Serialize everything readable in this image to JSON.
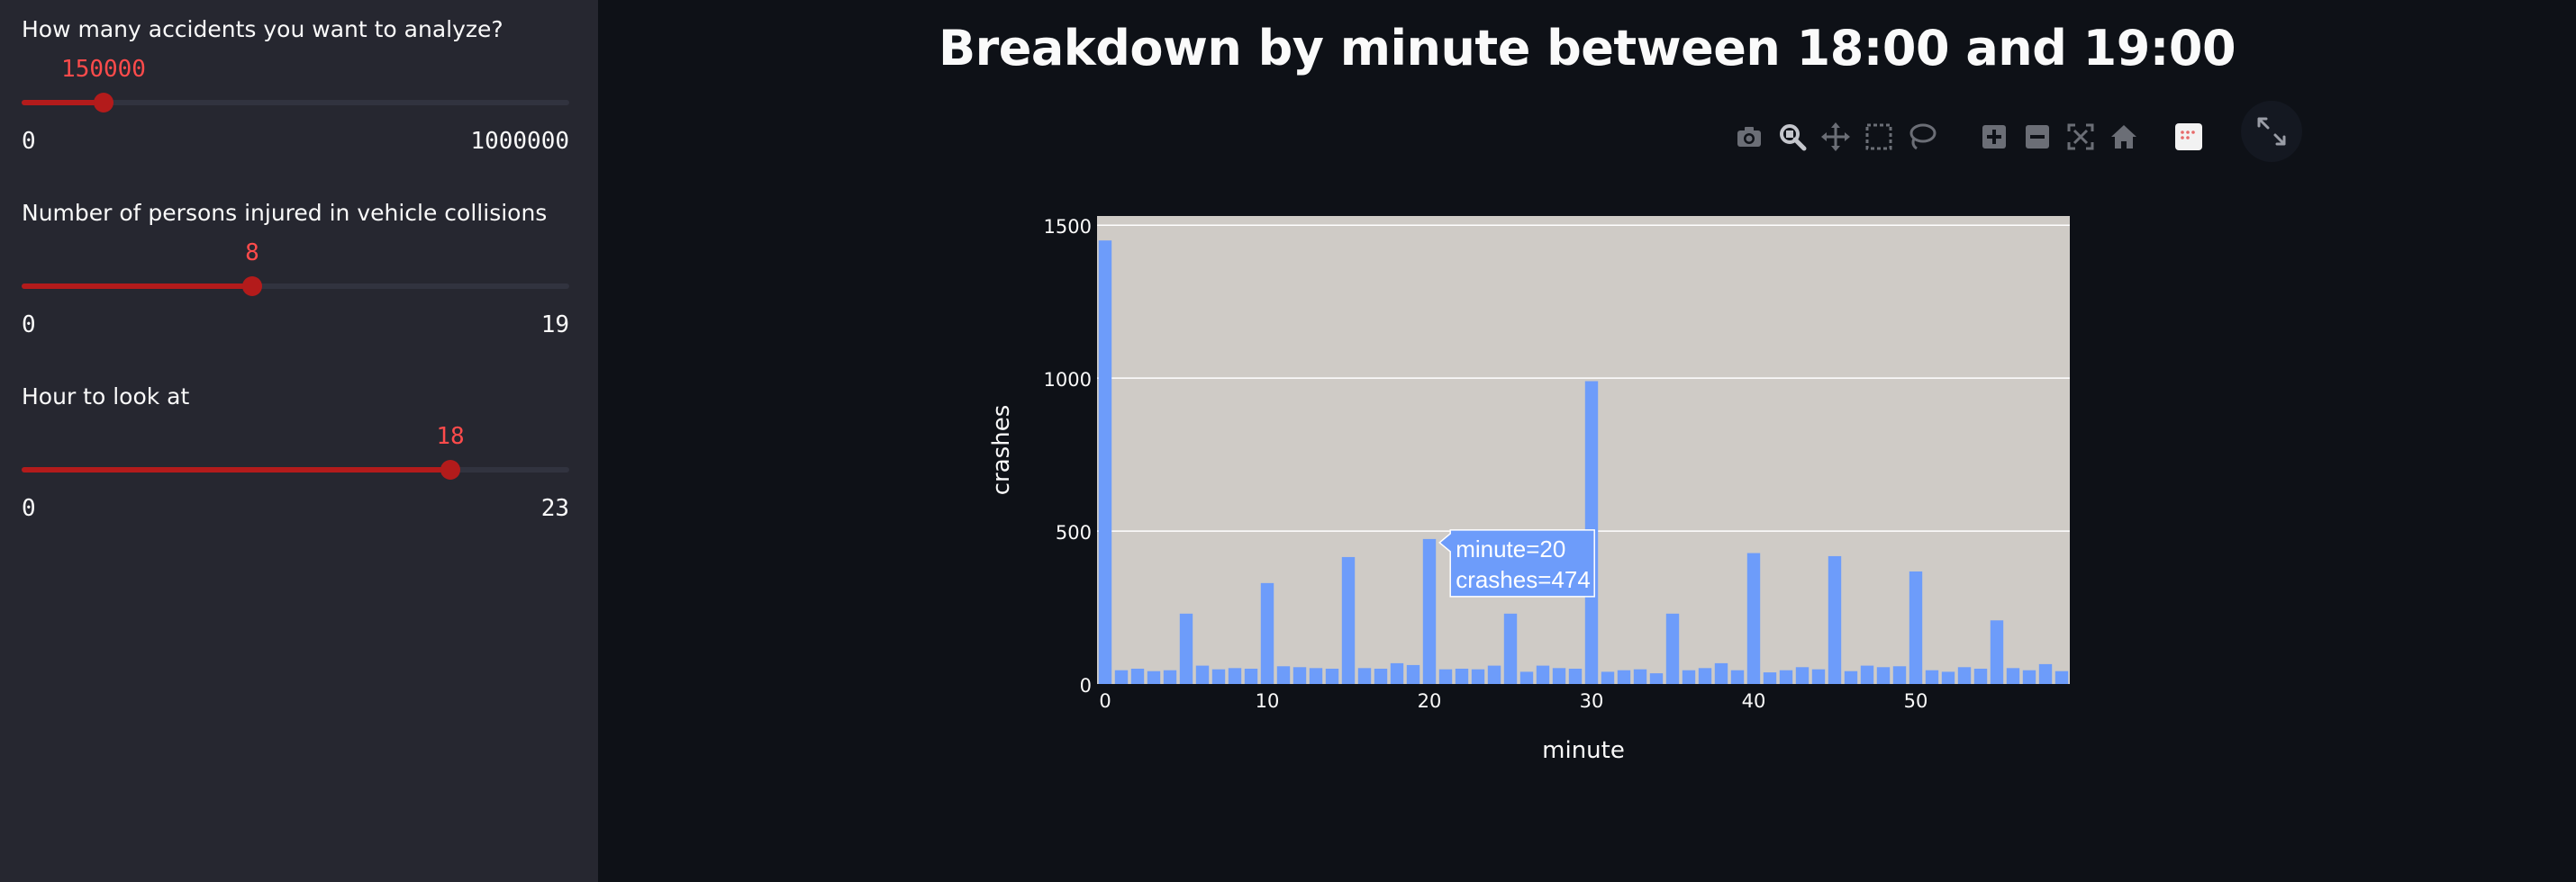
{
  "sidebar": {
    "sliders": [
      {
        "label": "How many accidents you want to analyze?",
        "value": "150000",
        "min": "0",
        "max": "1000000",
        "fraction": 0.15
      },
      {
        "label": "Number of persons injured in vehicle collisions",
        "value": "8",
        "min": "0",
        "max": "19",
        "fraction": 0.421
      },
      {
        "label": "Hour to look at",
        "value": "18",
        "min": "0",
        "max": "23",
        "fraction": 0.783
      }
    ]
  },
  "main": {
    "title": "Breakdown by minute between 18:00 and 19:00"
  },
  "modebar": {
    "icons": [
      "camera-icon",
      "zoom-icon",
      "pan-icon",
      "box-select-icon",
      "lasso-select-icon",
      "zoom-in-icon",
      "zoom-out-icon",
      "autoscale-icon",
      "reset-axes-icon",
      "plotly-logo-icon"
    ]
  },
  "colors": {
    "accent": "#ff4b4b",
    "slider": "#b31b1b",
    "bar": "#6d9cfa",
    "plot_bg": "#cfcbc6"
  },
  "chart_data": {
    "type": "bar",
    "title": "",
    "xlabel": "minute",
    "ylabel": "crashes",
    "xlim": [
      -0.5,
      59.5
    ],
    "ylim": [
      0,
      1530
    ],
    "x_ticks": [
      0,
      10,
      20,
      30,
      40,
      50
    ],
    "y_ticks": [
      0,
      500,
      1000,
      1500
    ],
    "grid": true,
    "x": [
      0,
      1,
      2,
      3,
      4,
      5,
      6,
      7,
      8,
      9,
      10,
      11,
      12,
      13,
      14,
      15,
      16,
      17,
      18,
      19,
      20,
      21,
      22,
      23,
      24,
      25,
      26,
      27,
      28,
      29,
      30,
      31,
      32,
      33,
      34,
      35,
      36,
      37,
      38,
      39,
      40,
      41,
      42,
      43,
      44,
      45,
      46,
      47,
      48,
      49,
      50,
      51,
      52,
      53,
      54,
      55,
      56,
      57,
      58,
      59
    ],
    "values": [
      1450,
      45,
      50,
      42,
      45,
      230,
      60,
      48,
      52,
      50,
      330,
      58,
      55,
      52,
      50,
      415,
      52,
      50,
      68,
      62,
      474,
      48,
      50,
      48,
      60,
      230,
      40,
      60,
      52,
      50,
      990,
      40,
      45,
      48,
      35,
      230,
      45,
      52,
      68,
      45,
      428,
      38,
      45,
      55,
      48,
      418,
      42,
      60,
      55,
      58,
      368,
      45,
      40,
      55,
      50,
      208,
      52,
      45,
      65,
      42
    ],
    "tooltip": {
      "x_text": "minute=20",
      "y_text": "crashes=474",
      "index": 20
    }
  }
}
